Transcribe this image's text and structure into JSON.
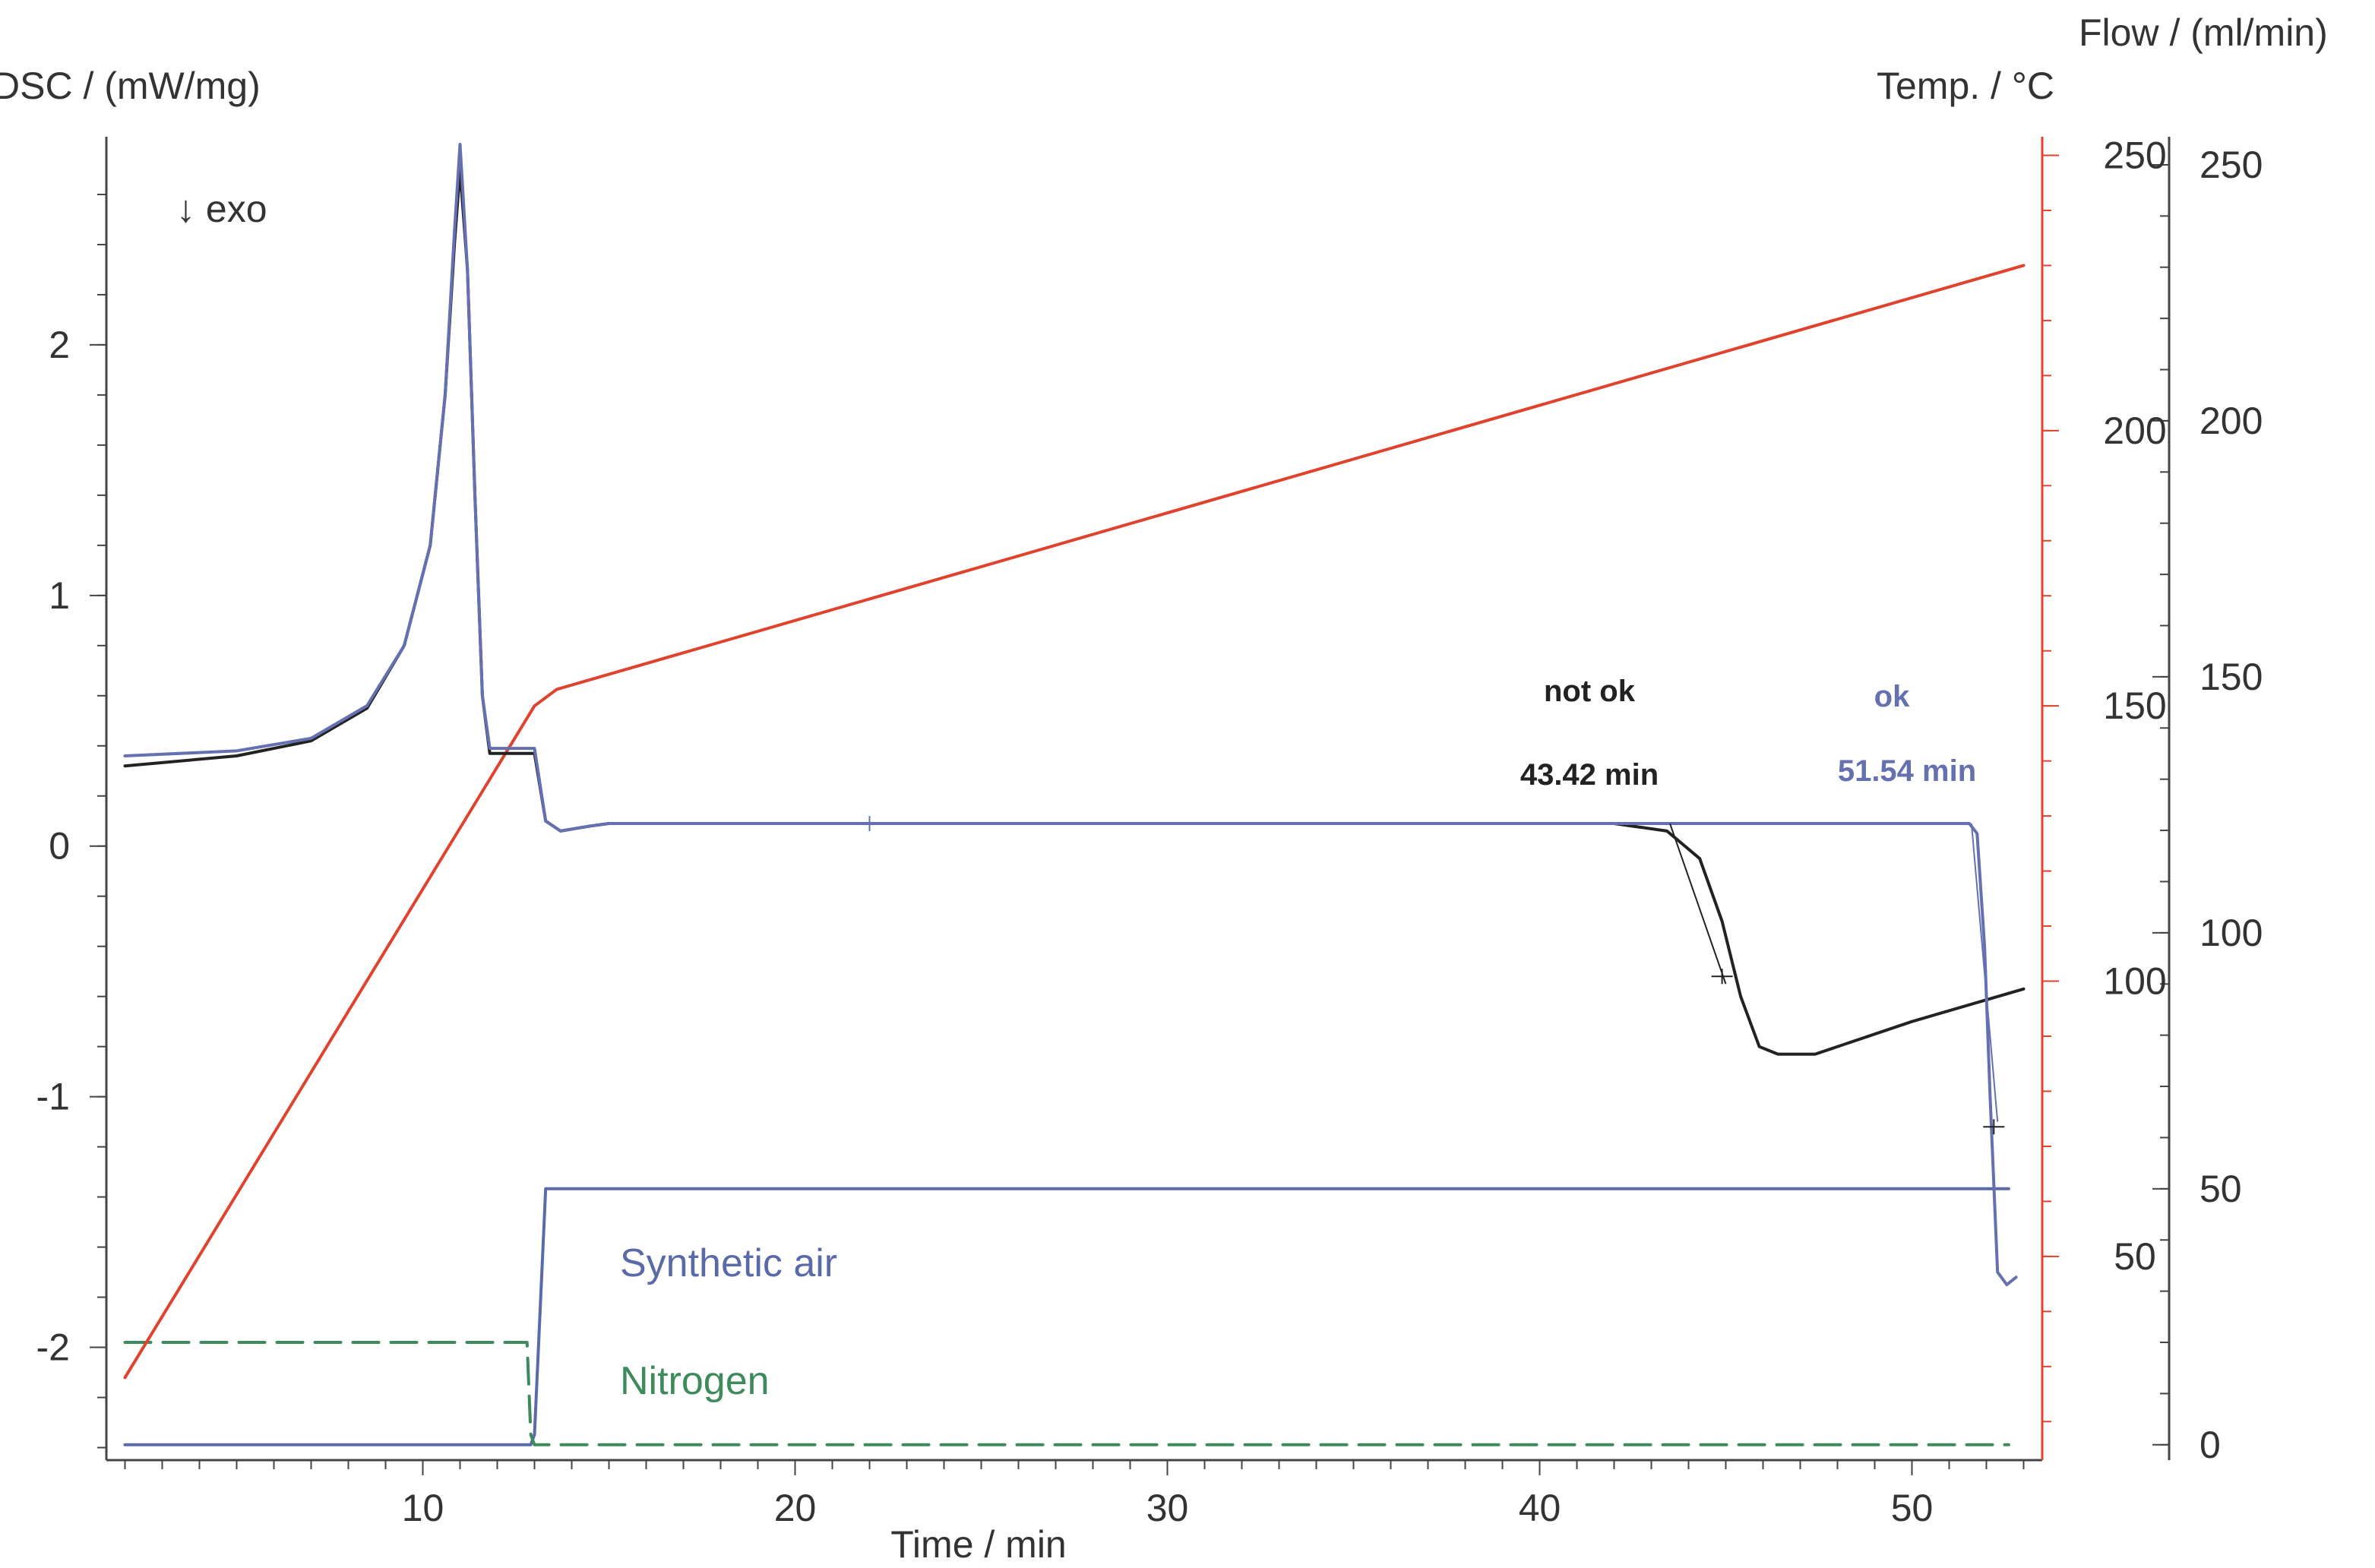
{
  "chart_data": {
    "type": "line",
    "title": "",
    "xlabel": "Time / min",
    "ylabel_left": "DSC / (mW/mg)",
    "ylabel_temp": "Temp. / °C",
    "ylabel_flow": "Flow / (ml/min)",
    "xlim": [
      1.5,
      53.5
    ],
    "ylim_dsc": [
      -2.45,
      2.8
    ],
    "ylim_temp": [
      13,
      252
    ],
    "ylim_flow": [
      -3,
      254
    ],
    "x_ticks": [
      10,
      20,
      30,
      40,
      50
    ],
    "dsc_ticks": [
      -2,
      -1,
      0,
      1,
      2
    ],
    "temp_ticks": [
      50,
      100,
      150,
      200,
      250
    ],
    "flow_ticks": [
      0,
      50,
      100,
      150,
      200,
      250
    ],
    "exo_label": "↓ exo",
    "annotations": {
      "not_ok_label": "not ok",
      "not_ok_time": "43.42 min",
      "ok_label": "ok",
      "ok_time": "51.54 min"
    },
    "series": [
      {
        "name": "Synthetic air",
        "axis": "flow",
        "color": "#5a6aa8",
        "points": [
          [
            2.0,
            0
          ],
          [
            12.9,
            0
          ],
          [
            13.0,
            2
          ],
          [
            13.3,
            50
          ],
          [
            13.4,
            50
          ],
          [
            52.6,
            50
          ]
        ]
      },
      {
        "name": "Nitrogen",
        "axis": "flow",
        "color": "#3d8a5c",
        "dashed": true,
        "points": [
          [
            2.0,
            20
          ],
          [
            12.8,
            20
          ],
          [
            12.9,
            2
          ],
          [
            13.0,
            0
          ],
          [
            52.6,
            0
          ]
        ]
      },
      {
        "name": "",
        "axis": "temp",
        "color": "#e0432d",
        "points": [
          [
            2.0,
            28
          ],
          [
            13.0,
            150
          ],
          [
            13.6,
            153
          ],
          [
            53.0,
            230
          ]
        ]
      },
      {
        "name": "",
        "axis": "dsc",
        "color": "#222222",
        "points": [
          [
            2.0,
            0.32
          ],
          [
            5.0,
            0.36
          ],
          [
            7.0,
            0.42
          ],
          [
            8.5,
            0.55
          ],
          [
            9.5,
            0.8
          ],
          [
            10.2,
            1.2
          ],
          [
            10.6,
            1.8
          ],
          [
            10.85,
            2.4
          ],
          [
            11.0,
            2.7
          ],
          [
            11.2,
            2.3
          ],
          [
            11.4,
            1.4
          ],
          [
            11.6,
            0.6
          ],
          [
            11.8,
            0.37
          ],
          [
            13.0,
            0.37
          ],
          [
            13.3,
            0.1
          ],
          [
            13.7,
            0.06
          ],
          [
            14.5,
            0.08
          ],
          [
            15.0,
            0.09
          ],
          [
            42.0,
            0.09
          ],
          [
            43.42,
            0.06
          ],
          [
            44.3,
            -0.05
          ],
          [
            44.9,
            -0.3
          ],
          [
            45.4,
            -0.6
          ],
          [
            45.9,
            -0.8
          ],
          [
            46.4,
            -0.83
          ],
          [
            47.4,
            -0.83
          ],
          [
            50.0,
            -0.7
          ],
          [
            53.0,
            -0.57
          ]
        ]
      },
      {
        "name": "",
        "axis": "dsc",
        "color": "#6470b0",
        "points": [
          [
            2.0,
            0.36
          ],
          [
            5.0,
            0.38
          ],
          [
            7.0,
            0.43
          ],
          [
            8.5,
            0.56
          ],
          [
            9.5,
            0.8
          ],
          [
            10.2,
            1.2
          ],
          [
            10.6,
            1.8
          ],
          [
            10.85,
            2.45
          ],
          [
            11.0,
            2.8
          ],
          [
            11.2,
            2.3
          ],
          [
            11.4,
            1.4
          ],
          [
            11.6,
            0.6
          ],
          [
            11.8,
            0.39
          ],
          [
            13.0,
            0.39
          ],
          [
            13.3,
            0.1
          ],
          [
            13.7,
            0.06
          ],
          [
            14.5,
            0.08
          ],
          [
            15.0,
            0.09
          ],
          [
            51.54,
            0.09
          ],
          [
            51.75,
            0.05
          ],
          [
            51.95,
            -0.4
          ],
          [
            52.1,
            -1.0
          ],
          [
            52.3,
            -1.7
          ],
          [
            52.55,
            -1.75
          ],
          [
            52.8,
            -1.72
          ]
        ]
      }
    ]
  }
}
